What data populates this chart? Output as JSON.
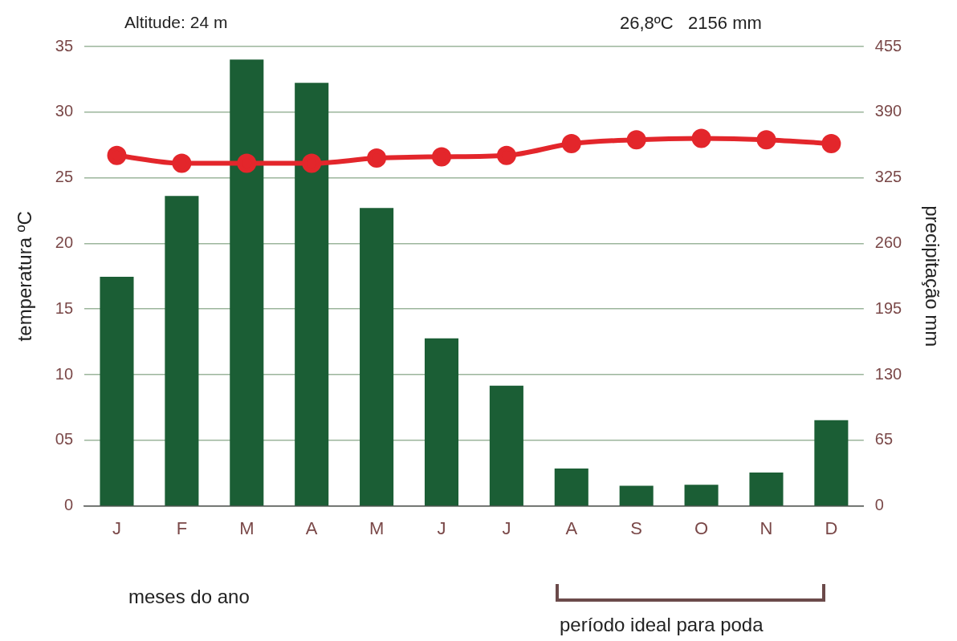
{
  "chart_data": {
    "type": "bar",
    "categories": [
      "J",
      "F",
      "M",
      "A",
      "M",
      "J",
      "J",
      "A",
      "S",
      "O",
      "N",
      "D"
    ],
    "series": [
      {
        "axis": "y2",
        "color": "#1b5e35",
        "values": [
          227,
          307,
          442,
          419,
          295,
          166,
          119,
          37,
          20,
          21,
          33,
          85
        ]
      },
      {
        "type": "line",
        "axis": "y",
        "color": "#e3262b",
        "values": [
          26.7,
          26.1,
          26.1,
          26.1,
          26.5,
          26.6,
          26.7,
          27.6,
          27.9,
          28.0,
          27.9,
          27.6
        ]
      }
    ],
    "ylim": [
      0,
      35
    ],
    "yticks": [
      0,
      {
        "value": 5,
        "label": "05"
      },
      10,
      15,
      20,
      25,
      30,
      35
    ],
    "y2lim": [
      0,
      455
    ],
    "y2ticks": [
      0,
      65,
      130,
      195,
      260,
      325,
      390,
      455
    ],
    "xlabel": "meses do ano",
    "ylabel": "temperatura ºC",
    "y2label": "precipitação mm",
    "annotations": [
      "Altitude: 24 m",
      "26,8ºC   2156 mm",
      "período ideal para poda"
    ],
    "grid": "y",
    "legend": false,
    "marker": "circle",
    "line_style": "solid"
  }
}
